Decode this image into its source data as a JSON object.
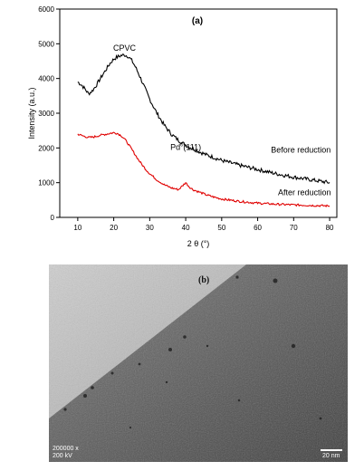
{
  "chart_data": {
    "type": "line",
    "panel_label": "(a)",
    "xlabel": "2 θ  (°)",
    "ylabel": "Intensity (a.u.)",
    "xlim": [
      5,
      82
    ],
    "ylim": [
      0,
      6000
    ],
    "xticks": [
      10,
      20,
      30,
      40,
      50,
      60,
      70,
      80
    ],
    "yticks": [
      0,
      1000,
      2000,
      3000,
      4000,
      5000,
      6000
    ],
    "grid": false,
    "legend": "none",
    "series": [
      {
        "name": "Before reduction",
        "color": "#000000",
        "x": [
          10,
          11,
          12,
          13,
          14,
          15,
          16,
          17,
          18,
          19,
          20,
          21,
          22,
          23,
          24,
          25,
          26,
          27,
          28,
          29,
          30,
          32,
          34,
          36,
          38,
          40,
          42,
          44,
          46,
          48,
          50,
          55,
          60,
          65,
          70,
          75,
          80
        ],
        "y": [
          3900,
          3820,
          3700,
          3560,
          3640,
          3780,
          3950,
          4120,
          4280,
          4440,
          4560,
          4620,
          4660,
          4680,
          4640,
          4520,
          4340,
          4120,
          3880,
          3640,
          3400,
          3000,
          2660,
          2400,
          2220,
          2080,
          1980,
          1880,
          1790,
          1720,
          1640,
          1500,
          1380,
          1260,
          1160,
          1080,
          1000
        ]
      },
      {
        "name": "After reduction",
        "color": "#e00000",
        "x": [
          10,
          11,
          12,
          13,
          14,
          15,
          16,
          17,
          18,
          19,
          20,
          21,
          22,
          23,
          24,
          25,
          26,
          27,
          28,
          29,
          30,
          32,
          34,
          36,
          38,
          39,
          40,
          41,
          42,
          44,
          46,
          48,
          50,
          55,
          60,
          65,
          70,
          75,
          80
        ],
        "y": [
          2400,
          2360,
          2330,
          2300,
          2310,
          2330,
          2360,
          2380,
          2400,
          2420,
          2440,
          2420,
          2360,
          2260,
          2120,
          1960,
          1800,
          1640,
          1500,
          1370,
          1260,
          1080,
          940,
          850,
          800,
          900,
          1000,
          880,
          800,
          720,
          640,
          580,
          530,
          460,
          410,
          380,
          360,
          345,
          330
        ]
      }
    ],
    "annotations": [
      {
        "text": "CPVC",
        "x": 23,
        "y": 4800
      },
      {
        "text": "Pd",
        "superscript": "0",
        "suffix": "(111)",
        "x": 40,
        "y": 1950
      },
      {
        "text": "Before reduction",
        "x": 72,
        "y": 1870
      },
      {
        "text": "After reduction",
        "x": 73,
        "y": 640
      }
    ]
  },
  "tem_image": {
    "panel_label": "(b)",
    "magnification": "200000 x",
    "voltage": "200 kV",
    "scale_bar_label": "20 nm"
  }
}
